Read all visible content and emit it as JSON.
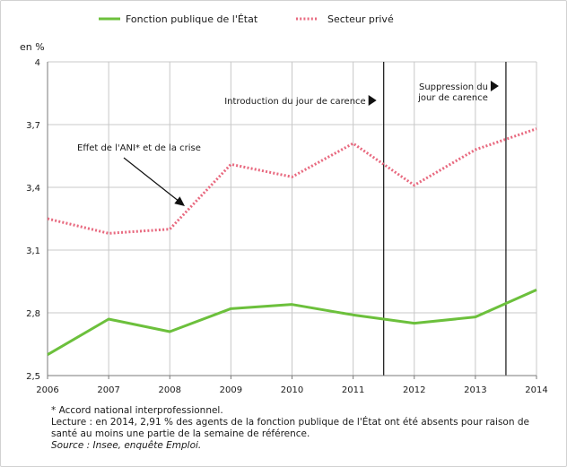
{
  "chart_data": {
    "type": "line",
    "x": [
      2006,
      2007,
      2008,
      2009,
      2010,
      2011,
      2012,
      2013,
      2014
    ],
    "series": [
      {
        "name": "Fonction publique de l'État",
        "color": "#6cc03c",
        "style": "solid",
        "values": [
          2.6,
          2.77,
          2.71,
          2.82,
          2.84,
          2.79,
          2.75,
          2.78,
          2.91
        ]
      },
      {
        "name": "Secteur privé",
        "color": "#e8697f",
        "style": "dotted",
        "values": [
          3.25,
          3.18,
          3.2,
          3.51,
          3.45,
          3.61,
          3.41,
          3.58,
          3.68
        ]
      }
    ],
    "xlim": [
      2006,
      2014
    ],
    "ylim": [
      2.5,
      4.0
    ],
    "yticks": [
      "2,5",
      "2,8",
      "3,1",
      "3,4",
      "3,7",
      "4"
    ],
    "ytick_values": [
      2.5,
      2.8,
      3.1,
      3.4,
      3.7,
      4.0
    ],
    "ylabel": "en %",
    "grid": true,
    "legend_position": "top",
    "vlines": [
      {
        "x": 2011.5,
        "label": [
          "Introduction du jour de carence"
        ]
      },
      {
        "x": 2013.5,
        "label": [
          "Suppression du",
          "jour de carence"
        ]
      }
    ],
    "annotations": [
      {
        "text": "Effet de l'ANI* et de la crise",
        "points_to_year": 2008
      }
    ]
  },
  "notes": {
    "footnote": "* Accord national interprofessionnel.",
    "lecture": "Lecture : en 2014, 2,91 % des agents de la fonction publique de l'État ont été absents pour raison de santé au moins une partie de la semaine de référence.",
    "source": "Source : Insee, enquête Emploi."
  }
}
